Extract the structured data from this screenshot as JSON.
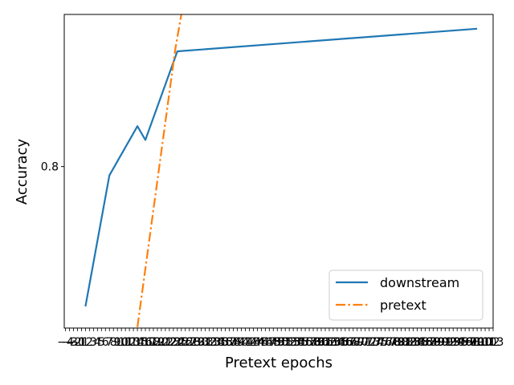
{
  "chart_data": {
    "type": "line",
    "xlabel": "Pretext epochs",
    "ylabel": "Accuracy",
    "xlim": [
      -4.3,
      103
    ],
    "ylim": [
      0.636,
      0.9545
    ],
    "x_ticks": [
      -4,
      -3,
      -2,
      -1,
      0,
      1,
      2,
      3,
      4,
      5,
      6,
      7,
      8,
      9,
      10,
      11,
      12,
      13,
      14,
      15,
      16,
      17,
      18,
      19,
      20,
      21,
      22,
      23,
      24,
      25,
      26,
      27,
      28,
      29,
      30,
      31,
      32,
      33,
      34,
      35,
      36,
      37,
      38,
      39,
      40,
      41,
      42,
      43,
      44,
      45,
      46,
      47,
      48,
      49,
      50,
      51,
      52,
      53,
      54,
      55,
      56,
      57,
      58,
      59,
      60,
      61,
      62,
      63,
      64,
      65,
      66,
      67,
      68,
      69,
      70,
      71,
      72,
      73,
      74,
      75,
      76,
      77,
      78,
      79,
      80,
      81,
      82,
      83,
      84,
      85,
      86,
      87,
      88,
      89,
      90,
      91,
      92,
      93,
      94,
      95,
      96,
      97,
      98,
      99,
      100,
      101,
      102,
      103
    ],
    "y_ticks": [
      0.8
    ],
    "y_tick_labels": [
      "0.8"
    ],
    "grid": false,
    "legend_position": "lower right",
    "series": [
      {
        "name": "downstream",
        "color": "#1f77b4",
        "style": "solid",
        "x": [
          1,
          7,
          14,
          16,
          24,
          99
        ],
        "y": [
          0.658,
          0.791,
          0.841,
          0.827,
          0.917,
          0.94
        ]
      },
      {
        "name": "pretext",
        "color": "#ff7f0e",
        "style": "dashdot",
        "x": [
          14,
          23.5,
          25
        ],
        "y": [
          0.637,
          0.92,
          0.9545
        ]
      }
    ]
  }
}
